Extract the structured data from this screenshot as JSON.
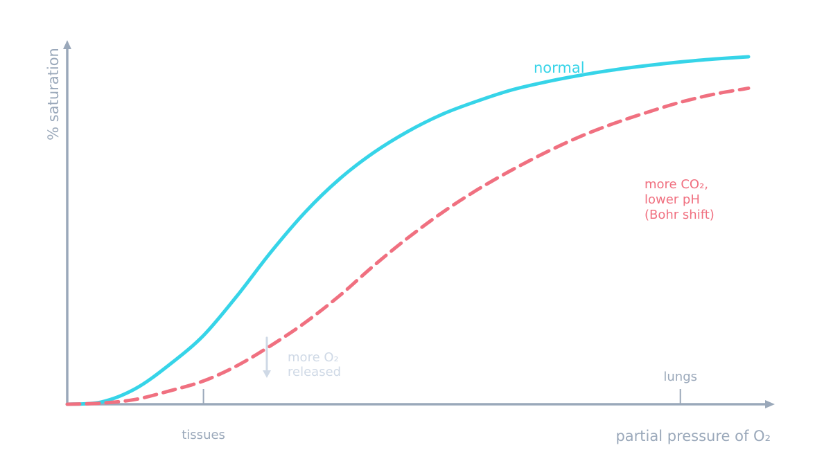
{
  "colors": {
    "axis": "#9aa8ba",
    "normal": "#36d4e8",
    "shifted": "#f07080",
    "annotation": "#cfd9e6",
    "tick_text": "#9aa8ba"
  },
  "chart_data": {
    "type": "line",
    "xlabel": "partial pressure of O₂",
    "ylabel": "% saturation",
    "x_axis_ticks": [
      {
        "label": "tissues",
        "x": 2
      },
      {
        "label": "lungs",
        "x": 9
      }
    ],
    "grid": false,
    "legend": "none",
    "series": [
      {
        "name": "normal",
        "style": "solid",
        "x": [
          0,
          0.5,
          1,
          1.5,
          2,
          2.5,
          3,
          3.5,
          4,
          4.5,
          5,
          5.5,
          6,
          6.5,
          7,
          7.5,
          8,
          8.5,
          9,
          9.5,
          10
        ],
        "y": [
          0,
          0.6,
          4.2,
          10.7,
          18.6,
          29.5,
          41.4,
          52.1,
          61.0,
          68.1,
          73.8,
          78.4,
          81.9,
          84.9,
          87.1,
          88.9,
          90.4,
          91.6,
          92.6,
          93.4,
          94.0
        ]
      },
      {
        "name": "more CO₂,\nlower pH\n(Bohr shift)",
        "style": "dashed",
        "x": [
          0,
          0.5,
          1,
          1.5,
          2,
          2.5,
          3,
          3.5,
          4,
          4.5,
          5,
          5.5,
          6,
          6.5,
          7,
          7.5,
          8,
          8.5,
          9,
          9.5,
          10
        ],
        "y": [
          0,
          0.3,
          1.3,
          3.6,
          6.3,
          10.5,
          16.0,
          22.2,
          29.4,
          37.5,
          45.0,
          51.8,
          57.8,
          63.1,
          67.9,
          72.2,
          75.8,
          78.9,
          81.7,
          83.9,
          85.5
        ]
      }
    ],
    "annotation": {
      "text": "more O₂\nreleased",
      "x": 2.93,
      "y_from": 18,
      "y_to": 7.5
    }
  }
}
